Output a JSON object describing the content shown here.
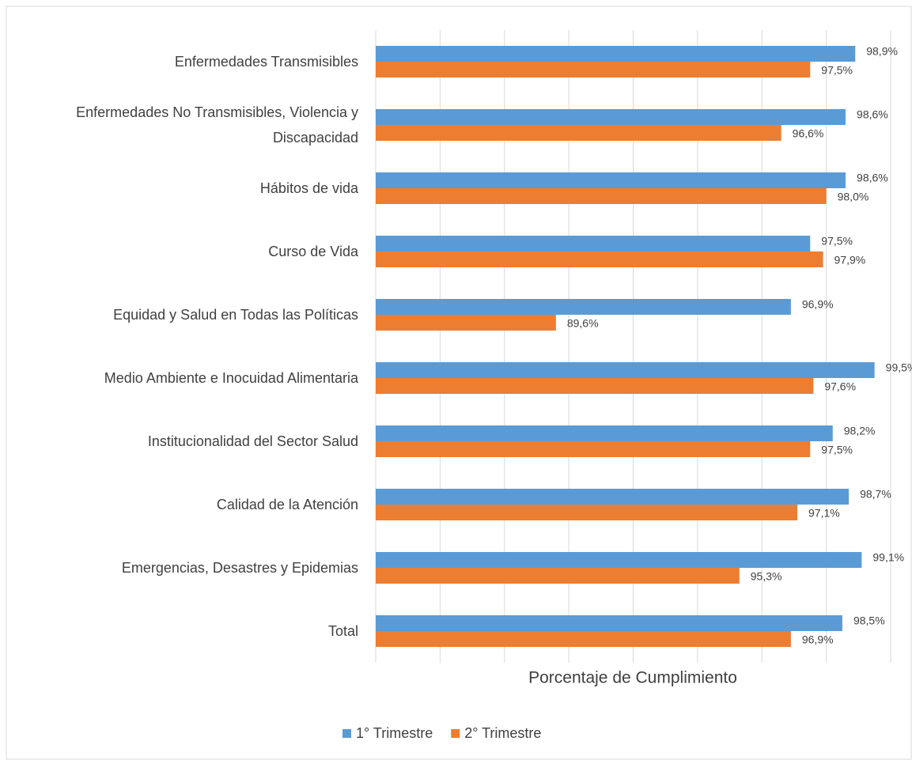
{
  "chart_data": {
    "type": "bar",
    "orientation": "horizontal",
    "x_label": "Porcentaje de Cumplimiento",
    "categories": [
      "Enfermedades Transmisibles",
      "Enfermedades No Transmisibles, Violencia y Discapacidad",
      "Hábitos de vida",
      "Curso de Vida",
      "Equidad y Salud en Todas las Políticas",
      "Medio Ambiente e Inocuidad Alimentaria",
      "Institucionalidad del Sector Salud",
      "Calidad de la Atención",
      "Emergencias, Desastres y Epidemias",
      "Total"
    ],
    "series": [
      {
        "name": "1° Trimestre",
        "color": "#5b9bd5",
        "values": [
          98.9,
          98.6,
          98.6,
          97.5,
          96.9,
          99.5,
          98.2,
          98.7,
          99.1,
          98.5
        ],
        "value_labels": [
          "98,9%",
          "98,6%",
          "98,6%",
          "97,5%",
          "96,9%",
          "99,5%",
          "98,2%",
          "98,7%",
          "99,1%",
          "98,5%"
        ]
      },
      {
        "name": "2° Trimestre",
        "color": "#ed7d31",
        "values": [
          97.5,
          96.6,
          98.0,
          97.9,
          89.6,
          97.6,
          97.5,
          97.1,
          95.3,
          96.9
        ],
        "value_labels": [
          "97,5%",
          "96,6%",
          "98,0%",
          "97,9%",
          "89,6%",
          "97,6%",
          "97,5%",
          "97,1%",
          "95,3%",
          "96,9%"
        ]
      }
    ],
    "xlim": [
      84,
      100
    ],
    "xticks": [
      84,
      86,
      88,
      90,
      92,
      94,
      96,
      98,
      100
    ],
    "grid": true,
    "legend": "bottom"
  }
}
